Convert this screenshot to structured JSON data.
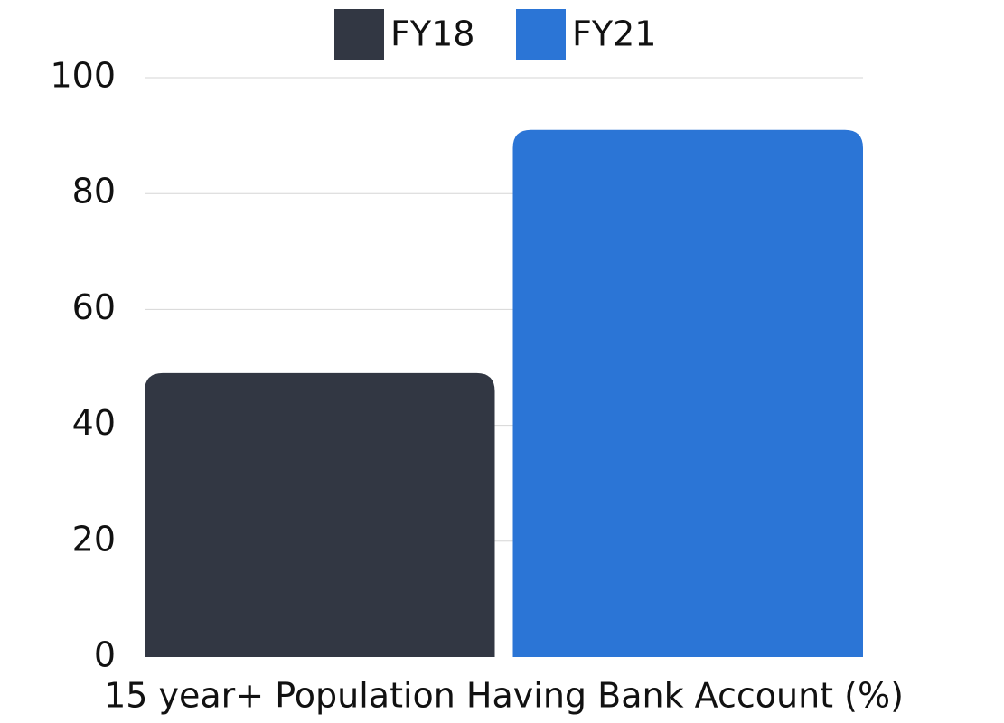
{
  "chart_data": {
    "type": "bar",
    "categories": [
      "15 year+ Population Having Bank Account (%)"
    ],
    "series": [
      {
        "name": "FY18",
        "color": "#323743",
        "values": [
          49
        ]
      },
      {
        "name": "FY21",
        "color": "#2b75d6",
        "values": [
          91
        ]
      }
    ],
    "ylim": [
      0,
      100
    ],
    "yticks": [
      0,
      20,
      40,
      60,
      80,
      100
    ],
    "grid": true,
    "legend": "top"
  }
}
